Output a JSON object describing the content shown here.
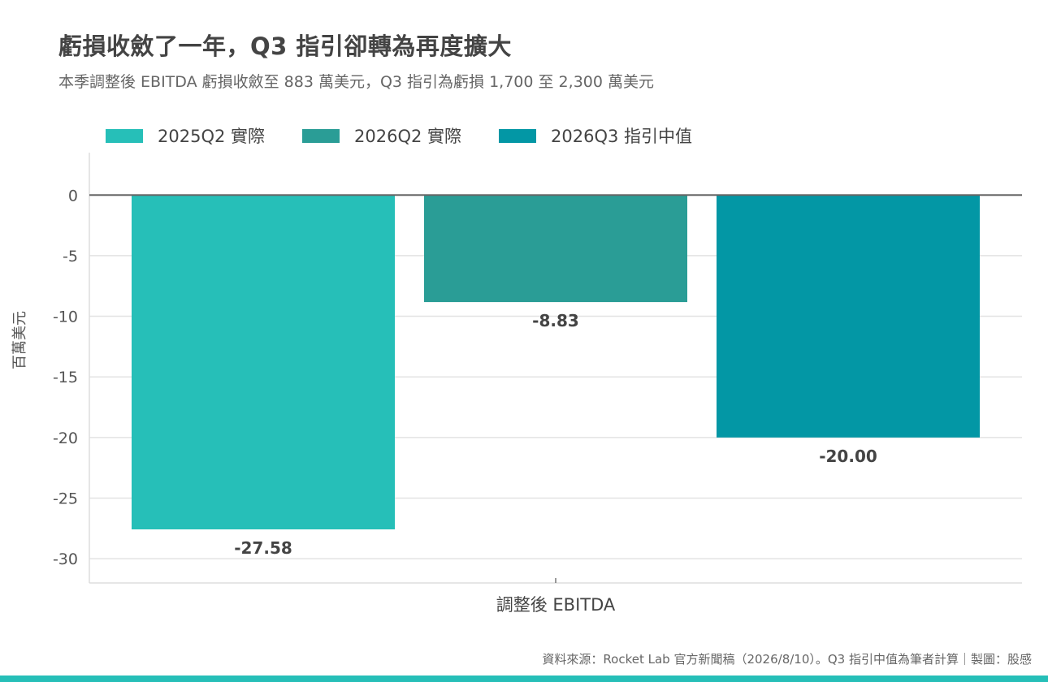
{
  "title": "虧損收斂了一年，Q3 指引卻轉為再度擴大",
  "subtitle": "本季調整後 EBITDA 虧損收斂至 883 萬美元，Q3 指引為虧損 1,700 至 2,300 萬美元",
  "source": "資料來源：Rocket Lab 官方新聞稿（2026/8/10）。Q3 指引中值為筆者計算｜製圖：股感",
  "accent_color": "#26bfb8",
  "chart_data": {
    "type": "bar",
    "categories": [
      "調整後 EBITDA"
    ],
    "series": [
      {
        "name": "2025Q2 實際",
        "values": [
          -27.58
        ],
        "color": "#26bfb8",
        "label": "-27.58"
      },
      {
        "name": "2026Q2 實際",
        "values": [
          -8.83
        ],
        "color": "#2a9d96",
        "label": "-8.83"
      },
      {
        "name": "2026Q3 指引中值",
        "values": [
          -20.0
        ],
        "color": "#0397a5",
        "label": "-20.00"
      }
    ],
    "xlabel": "調整後 EBITDA",
    "ylabel": "百萬美元",
    "ylim": [
      -32,
      3.5
    ],
    "yticks": [
      0,
      -5,
      -10,
      -15,
      -20,
      -25,
      -30
    ],
    "ytick_labels": [
      "0",
      "-5",
      "-10",
      "-15",
      "-20",
      "-25",
      "-30"
    ],
    "grid": true,
    "legend": "top-left"
  }
}
